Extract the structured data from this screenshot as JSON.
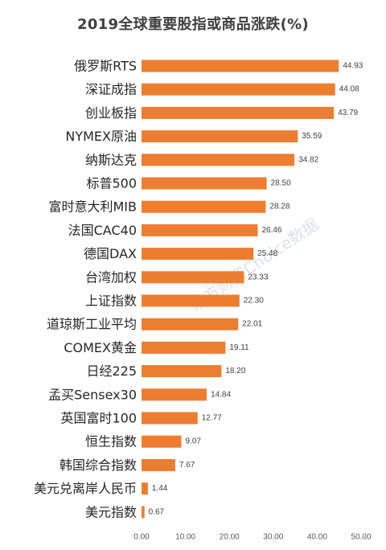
{
  "chart_data": {
    "type": "bar",
    "orientation": "horizontal",
    "title": "2019全球重要股指或商品涨跌(%)",
    "categories": [
      "俄罗斯RTS",
      "深证成指",
      "创业板指",
      "NYMEX原油",
      "纳斯达克",
      "标普500",
      "富时意大利MIB",
      "法国CAC40",
      "德国DAX",
      "台湾加权",
      "上证指数",
      "道琼斯工业平均",
      "COMEX黄金",
      "日经225",
      "孟买Sensex30",
      "英国富时100",
      "恒生指数",
      "韩国综合指数",
      "美元兑离岸人民币",
      "美元指数"
    ],
    "values": [
      44.93,
      44.08,
      43.79,
      35.59,
      34.82,
      28.5,
      28.28,
      26.46,
      25.48,
      23.33,
      22.3,
      22.01,
      19.11,
      18.2,
      14.84,
      12.77,
      9.07,
      7.67,
      1.44,
      0.67
    ],
    "value_labels": [
      "44.93",
      "44.08",
      "43.79",
      "35.59",
      "34.82",
      "28.50",
      "28.28",
      "26.46",
      "25.48",
      "23.33",
      "22.30",
      "22.01",
      "19.11",
      "18.20",
      "14.84",
      "12.77",
      "9.07",
      "7.67",
      "1.44",
      "0.67"
    ],
    "xlim": [
      0,
      50
    ],
    "x_ticks": [
      "0.00",
      "10.00",
      "20.00",
      "30.00",
      "40.00",
      "50.00"
    ],
    "x_tick_values": [
      0,
      10,
      20,
      30,
      40,
      50
    ],
    "grid": false,
    "legend": "none",
    "bar_color": "#ed7d31",
    "watermark": "东方财富Choice数据"
  }
}
